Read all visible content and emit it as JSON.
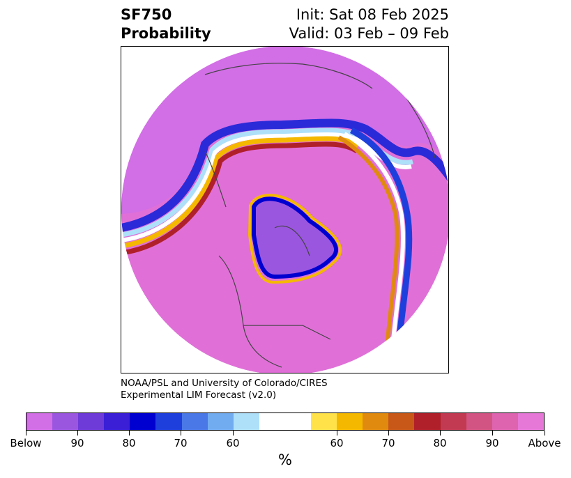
{
  "header": {
    "variable": "SF750",
    "metric": "Probability",
    "init": "Init: Sat 08 Feb 2025",
    "valid": "Valid: 03 Feb – 09 Feb"
  },
  "credits": {
    "line1": "NOAA/PSL and University of Colorado/CIRES",
    "line2": "Experimental LIM Forecast (v2.0)"
  },
  "colorbar": {
    "unit_label": "%",
    "colors": [
      "#d26ee6",
      "#9b56e0",
      "#6e3ad8",
      "#3a1fd6",
      "#0000d0",
      "#1f3fdc",
      "#4a78e6",
      "#72acf0",
      "#aee0fa",
      "#ffffff",
      "#ffe14a",
      "#f5b800",
      "#e08a10",
      "#c85818",
      "#b0202a",
      "#c23a52",
      "#d25482",
      "#de64b0",
      "#e678d8"
    ],
    "tick_labels": [
      "Below",
      "90",
      "80",
      "70",
      "60",
      "60",
      "70",
      "80",
      "90",
      "Above"
    ]
  },
  "map": {
    "projection": "north-polar-stereographic",
    "colors": {
      "below_strong": "#d26ee6",
      "above_strong": "#e678d8",
      "mid_above": "#de64c8",
      "neutral": "#ffffff",
      "boundary": "#444444"
    }
  }
}
